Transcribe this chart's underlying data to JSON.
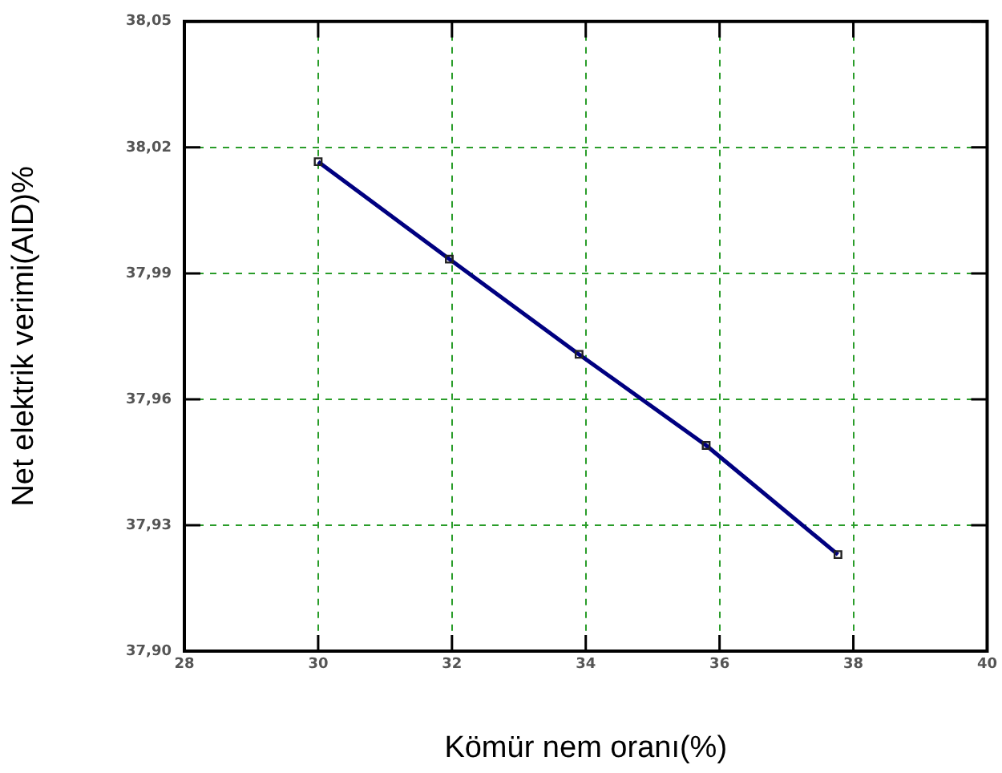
{
  "chart_data": {
    "type": "line",
    "xlabel": "Kömür nem oranı(%)",
    "ylabel": "Net elektrik verimi(AID)%",
    "x": [
      30,
      31.96,
      33.9,
      35.8,
      37.77
    ],
    "series": [
      {
        "color": "#000080",
        "values": [
          38.0166,
          37.9934,
          37.9707,
          37.949,
          37.923
        ]
      }
    ],
    "xlim": [
      28,
      40
    ],
    "xticks": [
      28,
      30,
      32,
      34,
      36,
      38,
      40
    ],
    "ylim": [
      37.9,
      38.05
    ],
    "yticks": [
      {
        "value": 37.9,
        "label": "37,90"
      },
      {
        "value": 37.93,
        "label": "37,93"
      },
      {
        "value": 37.96,
        "label": "37,96"
      },
      {
        "value": 37.99,
        "label": "37,99"
      },
      {
        "value": 38.02,
        "label": "38,02"
      },
      {
        "value": 38.05,
        "label": "38,05"
      }
    ],
    "grid": true,
    "marker": "square",
    "line_style": "solid",
    "legend": false
  }
}
